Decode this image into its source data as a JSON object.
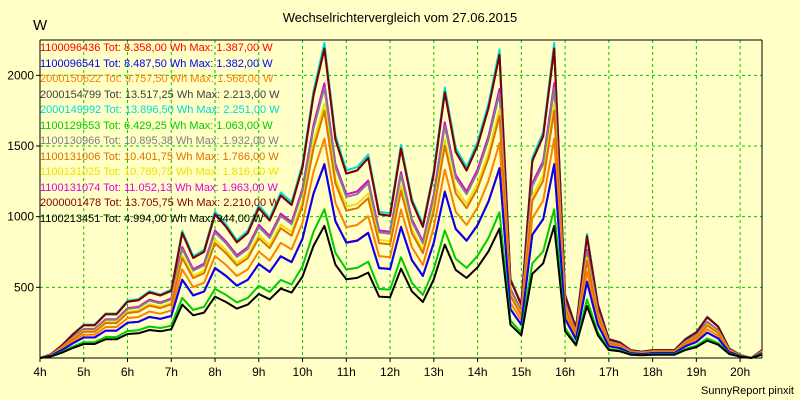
{
  "chart_data": {
    "type": "line",
    "title": "Wechselrichtervergleich vom 27.06.2015",
    "ylabel": "W",
    "xlabel": "",
    "ylim": [
      0,
      2250
    ],
    "xlim": [
      4,
      20.5
    ],
    "yticks": [
      500,
      1000,
      1500,
      2000
    ],
    "xticks": [
      4,
      5,
      6,
      7,
      8,
      9,
      10,
      11,
      12,
      13,
      14,
      15,
      16,
      17,
      18,
      19,
      20
    ],
    "xtick_labels": [
      "4h",
      "5h",
      "6h",
      "7h",
      "8h",
      "9h",
      "10h",
      "11h",
      "12h",
      "13h",
      "14h",
      "15h",
      "16h",
      "17h",
      "18h",
      "19h",
      "20h"
    ],
    "x": [
      4.0,
      4.25,
      4.5,
      4.75,
      5.0,
      5.25,
      5.5,
      5.75,
      6.0,
      6.25,
      6.5,
      6.75,
      7.0,
      7.25,
      7.5,
      7.75,
      8.0,
      8.25,
      8.5,
      8.75,
      9.0,
      9.25,
      9.5,
      9.75,
      10.0,
      10.25,
      10.5,
      10.75,
      11.0,
      11.25,
      11.5,
      11.75,
      12.0,
      12.25,
      12.5,
      12.75,
      13.0,
      13.25,
      13.5,
      13.75,
      14.0,
      14.25,
      14.5,
      14.75,
      15.0,
      15.25,
      15.5,
      15.75,
      16.0,
      16.25,
      16.5,
      16.75,
      17.0,
      17.25,
      17.5,
      17.75,
      18.0,
      18.25,
      18.5,
      18.75,
      19.0,
      19.25,
      19.5,
      19.75,
      20.0,
      20.25,
      20.5
    ],
    "shape": [
      0.0,
      0.012,
      0.04,
      0.075,
      0.105,
      0.105,
      0.14,
      0.14,
      0.18,
      0.185,
      0.21,
      0.2,
      0.215,
      0.4,
      0.32,
      0.34,
      0.46,
      0.42,
      0.37,
      0.4,
      0.48,
      0.44,
      0.52,
      0.49,
      0.61,
      0.84,
      0.99,
      0.7,
      0.59,
      0.6,
      0.64,
      0.46,
      0.455,
      0.67,
      0.5,
      0.42,
      0.59,
      0.85,
      0.66,
      0.6,
      0.68,
      0.8,
      0.97,
      0.25,
      0.17,
      0.63,
      0.71,
      0.99,
      0.2,
      0.095,
      0.39,
      0.17,
      0.06,
      0.05,
      0.025,
      0.02,
      0.025,
      0.025,
      0.025,
      0.06,
      0.082,
      0.13,
      0.1,
      0.03,
      0.01,
      0.0,
      0.025
    ],
    "series": [
      {
        "name": "1100096436",
        "label": "1100096436 Tot: 8.358,00 Wh Max: 1.387,00 W",
        "color": "#ff0000",
        "peak": 1387
      },
      {
        "name": "1100096541",
        "label": "1100096541 Tot: 8.487,50 Wh Max: 1.382,00 W",
        "color": "#0000ff",
        "peak": 1382
      },
      {
        "name": "2000150622",
        "label": "2000150622 Tot: 9.757,50 Wh Max: 1.568,00 W",
        "color": "#ff8000",
        "peak": 1568
      },
      {
        "name": "2000154799",
        "label": "2000154799 Tot: 13.517,25 Wh Max: 2.213,00 W",
        "color": "#404040",
        "peak": 2213
      },
      {
        "name": "2000149992",
        "label": "2000149992 Tot: 13.896,50 Wh Max: 2.251,00 W",
        "color": "#00dada",
        "peak": 2251
      },
      {
        "name": "1100129553",
        "label": "1100129553 Tot: 6.429,25 Wh Max: 1.063,00 W",
        "color": "#00cc00",
        "peak": 1063
      },
      {
        "name": "1100130966",
        "label": "1100130966 Tot: 10.895,38 Wh Max: 1.932,00 W",
        "color": "#808080",
        "peak": 1932
      },
      {
        "name": "1100131006",
        "label": "1100131006 Tot: 10.401,75 Wh Max: 1.766,00 W",
        "color": "#e07000",
        "peak": 1766
      },
      {
        "name": "1100131025",
        "label": "1100131025 Tot: 10.789,75 Wh Max: 1.816,00 W",
        "color": "#f0e000",
        "peak": 1816
      },
      {
        "name": "1100131074",
        "label": "1100131074 Tot: 11.052,13 Wh Max: 1.963,00 W",
        "color": "#e000e0",
        "peak": 1963
      },
      {
        "name": "2000001478",
        "label": "2000001478 Tot: 13.705,75 Wh Max: 2.210,00 W",
        "color": "#800000",
        "peak": 2210
      },
      {
        "name": "1100213451",
        "label": "1100213451 Tot: 4.994,00 Wh Max: 944,00 W",
        "color": "#000000",
        "peak": 944
      }
    ],
    "grid": true,
    "legend": "top-left"
  },
  "credit": "SunnyReport pinxit",
  "colors": {
    "background": "#ffffc6",
    "plot": "#ffffc6",
    "grid": "#00c800"
  }
}
